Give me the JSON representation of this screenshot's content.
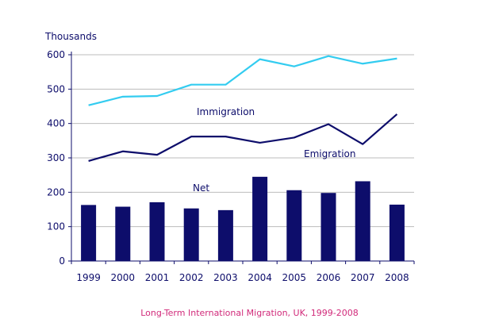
{
  "chart_data": {
    "type": "bar+line",
    "title": "",
    "caption": "Long-Term International Migration, UK, 1999-2008",
    "ylabel": "Thousands",
    "xlabel": "",
    "ylim": [
      0,
      600
    ],
    "yticks": [
      0,
      100,
      200,
      300,
      400,
      500,
      600
    ],
    "grid": true,
    "categories": [
      "1999",
      "2000",
      "2001",
      "2002",
      "2003",
      "2004",
      "2005",
      "2006",
      "2007",
      "2008"
    ],
    "series": [
      {
        "name": "Net",
        "type": "bar",
        "color": "#0d0d6b",
        "values": [
          163,
          158,
          171,
          153,
          148,
          245,
          206,
          198,
          232,
          164
        ]
      },
      {
        "name": "Immigration",
        "type": "line",
        "color": "#33ccf0",
        "values": [
          453,
          478,
          480,
          513,
          513,
          587,
          566,
          596,
          574,
          589
        ]
      },
      {
        "name": "Emigration",
        "type": "line",
        "color": "#0d0d6b",
        "values": [
          291,
          319,
          309,
          362,
          362,
          344,
          359,
          398,
          340,
          427
        ]
      }
    ]
  }
}
